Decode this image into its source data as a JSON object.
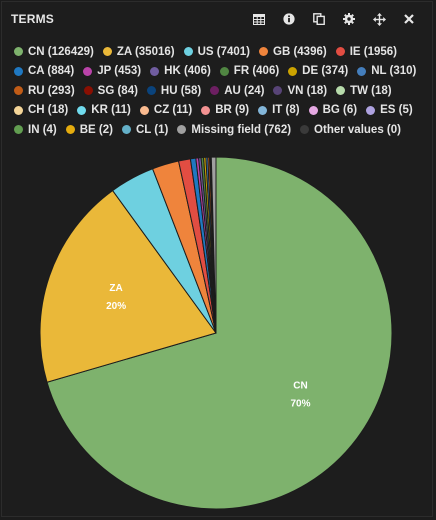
{
  "panel": {
    "title": "TERMS",
    "tools": [
      {
        "name": "table-view-icon"
      },
      {
        "name": "info-icon"
      },
      {
        "name": "copy-icon"
      },
      {
        "name": "settings-gear-icon"
      },
      {
        "name": "move-icon"
      },
      {
        "name": "close-icon"
      }
    ]
  },
  "legend": [
    {
      "label": "CN (126429)",
      "color": "#7eb26d"
    },
    {
      "label": "ZA (35016)",
      "color": "#eab839"
    },
    {
      "label": "US (7401)",
      "color": "#6ed0e0"
    },
    {
      "label": "GB (4396)",
      "color": "#ef843c"
    },
    {
      "label": "IE (1956)",
      "color": "#e24d42"
    },
    {
      "label": "CA (884)",
      "color": "#1f78c1"
    },
    {
      "label": "JP (453)",
      "color": "#ba43a9"
    },
    {
      "label": "HK (406)",
      "color": "#705da0"
    },
    {
      "label": "FR (406)",
      "color": "#508642"
    },
    {
      "label": "DE (374)",
      "color": "#cca300"
    },
    {
      "label": "NL (310)",
      "color": "#447ebc"
    },
    {
      "label": "RU (293)",
      "color": "#c15c17"
    },
    {
      "label": "SG (84)",
      "color": "#890f02"
    },
    {
      "label": "HU (58)",
      "color": "#0a437c"
    },
    {
      "label": "AU (24)",
      "color": "#6d1f62"
    },
    {
      "label": "VN (18)",
      "color": "#584477"
    },
    {
      "label": "TW (18)",
      "color": "#b7dbab"
    },
    {
      "label": "CH (18)",
      "color": "#f4d598"
    },
    {
      "label": "KR (11)",
      "color": "#70dbed"
    },
    {
      "label": "CZ (11)",
      "color": "#f9ba8f"
    },
    {
      "label": "BR (9)",
      "color": "#f29191"
    },
    {
      "label": "IT (8)",
      "color": "#82b5d8"
    },
    {
      "label": "BG (6)",
      "color": "#e5a8e2"
    },
    {
      "label": "ES (5)",
      "color": "#aea2e0"
    },
    {
      "label": "IN (4)",
      "color": "#629e51"
    },
    {
      "label": "BE (2)",
      "color": "#e5ac0e"
    },
    {
      "label": "CL (1)",
      "color": "#64b0c8"
    },
    {
      "label": "Missing field (762)",
      "color": "#a0a0a0"
    },
    {
      "label": "Other values (0)",
      "color": "#3a3a3a"
    }
  ],
  "chart_data": {
    "type": "pie",
    "title": "TERMS",
    "categories": [
      "CN",
      "ZA",
      "US",
      "GB",
      "IE",
      "CA",
      "JP",
      "HK",
      "FR",
      "DE",
      "NL",
      "RU",
      "SG",
      "HU",
      "AU",
      "VN",
      "TW",
      "CH",
      "KR",
      "CZ",
      "BR",
      "IT",
      "BG",
      "ES",
      "IN",
      "BE",
      "CL",
      "Missing field",
      "Other values"
    ],
    "values": [
      126429,
      35016,
      7401,
      4396,
      1956,
      884,
      453,
      406,
      406,
      374,
      310,
      293,
      84,
      58,
      24,
      18,
      18,
      18,
      11,
      11,
      9,
      8,
      6,
      5,
      4,
      2,
      1,
      762,
      0
    ],
    "slice_labels": [
      {
        "category": "CN",
        "name": "CN",
        "percent": "70%"
      },
      {
        "category": "ZA",
        "name": "ZA",
        "percent": "20%"
      }
    ],
    "legend_position": "top"
  }
}
